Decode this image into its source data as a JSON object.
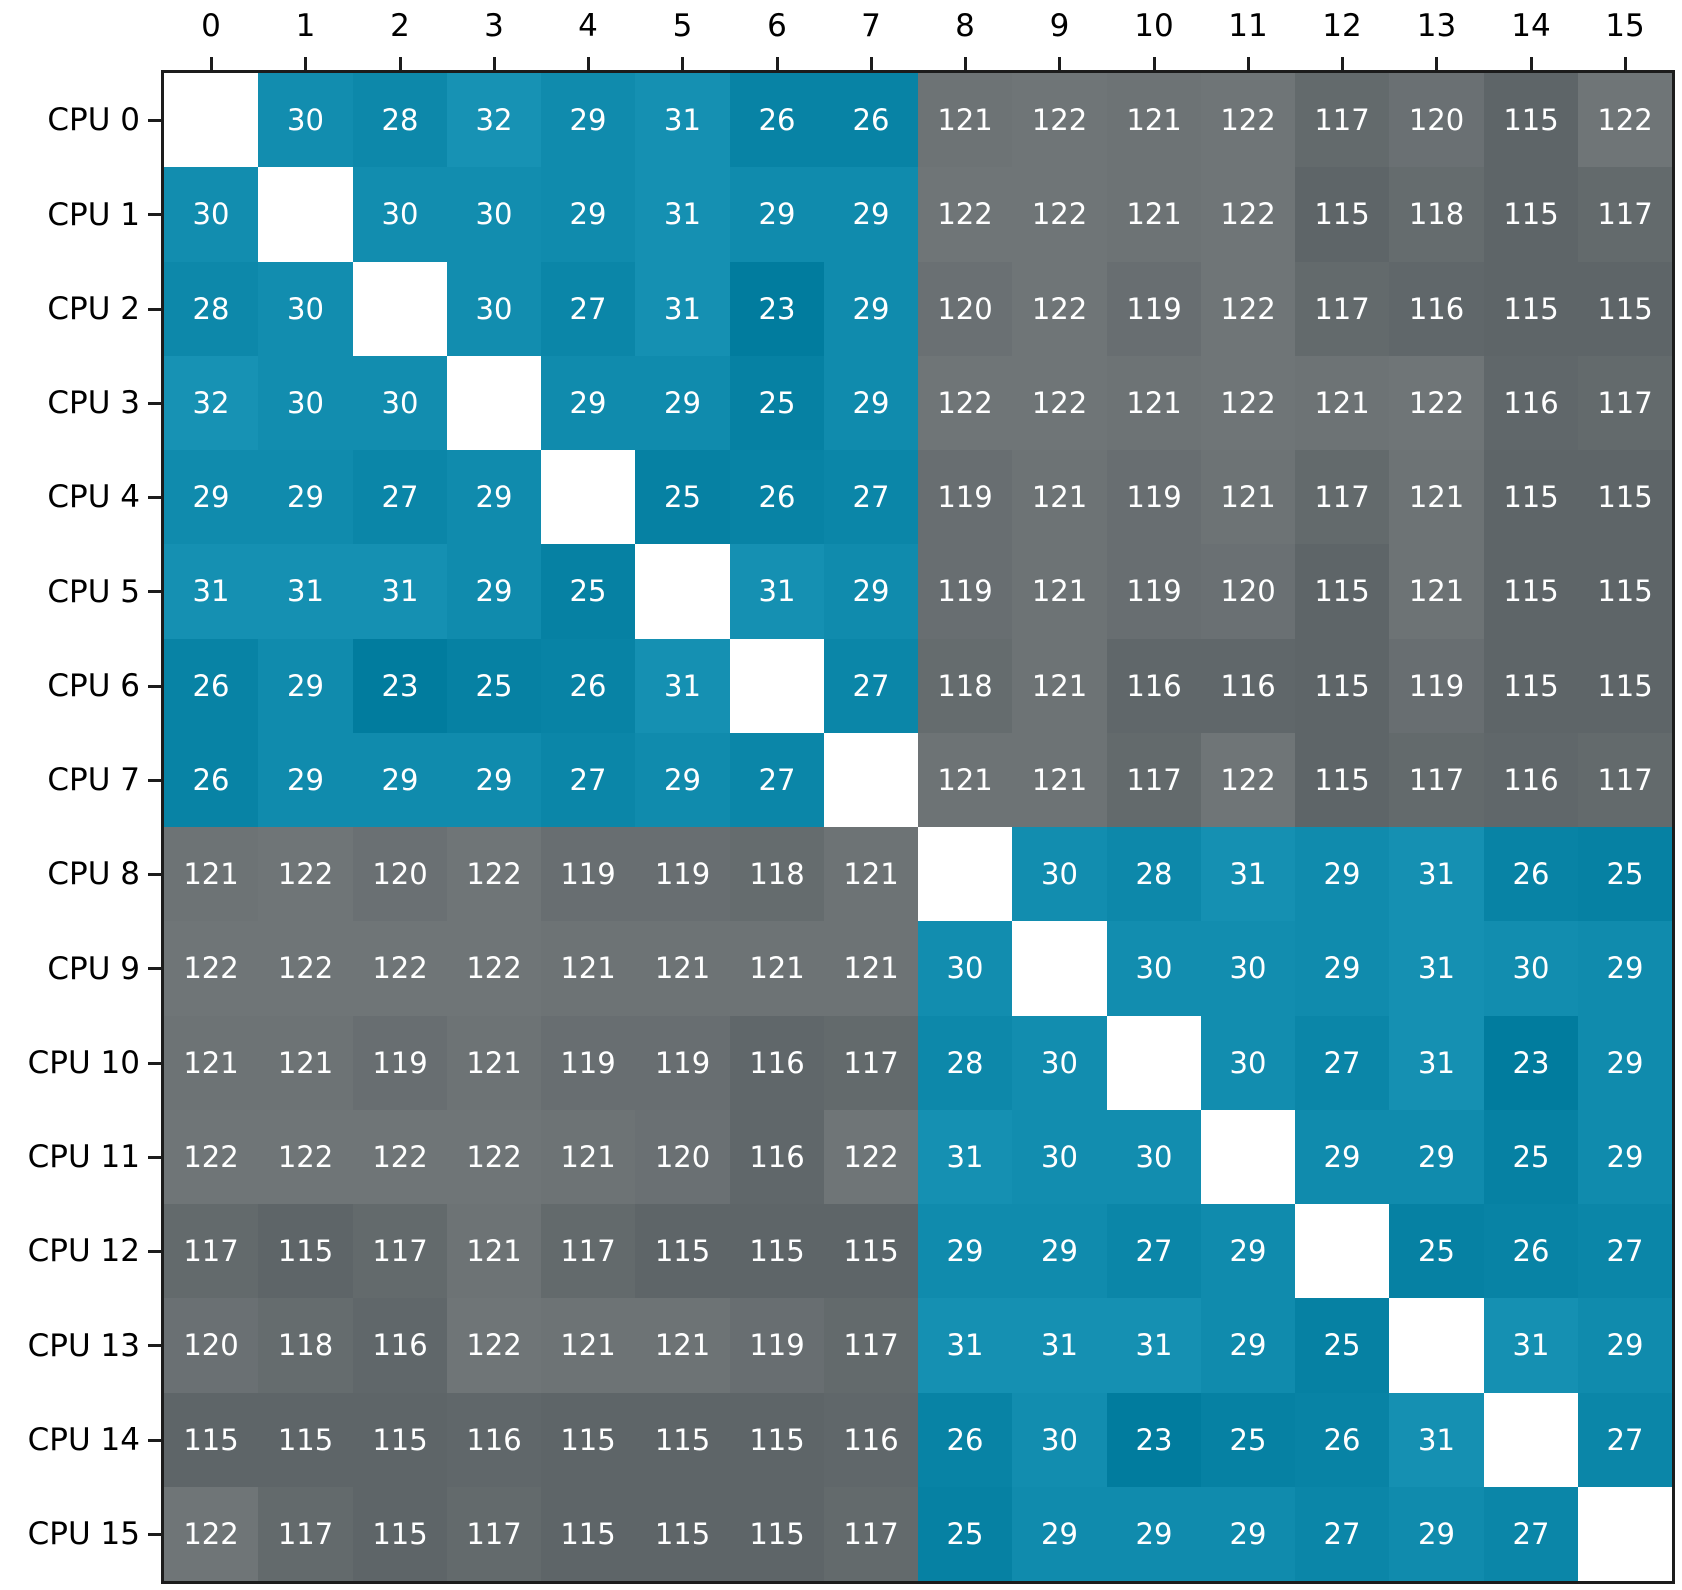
{
  "figure": {
    "background": "#ffffff"
  },
  "chart_data": {
    "type": "heatmap",
    "title": "",
    "xlabel": "",
    "ylabel": "",
    "grid": false,
    "legend": "none",
    "x_tick_labels": [
      "0",
      "1",
      "2",
      "3",
      "4",
      "5",
      "6",
      "7",
      "8",
      "9",
      "10",
      "11",
      "12",
      "13",
      "14",
      "15"
    ],
    "y_tick_labels": [
      "CPU 0",
      "CPU 1",
      "CPU 2",
      "CPU 3",
      "CPU 4",
      "CPU 5",
      "CPU 6",
      "CPU 7",
      "CPU 8",
      "CPU 9",
      "CPU 10",
      "CPU 11",
      "CPU 12",
      "CPU 13",
      "CPU 14",
      "CPU 15"
    ],
    "values": [
      [
        null,
        30,
        28,
        32,
        29,
        31,
        26,
        26,
        121,
        122,
        121,
        122,
        117,
        120,
        115,
        122
      ],
      [
        30,
        null,
        30,
        30,
        29,
        31,
        29,
        29,
        122,
        122,
        121,
        122,
        115,
        118,
        115,
        117
      ],
      [
        28,
        30,
        null,
        30,
        27,
        31,
        23,
        29,
        120,
        122,
        119,
        122,
        117,
        116,
        115,
        115
      ],
      [
        32,
        30,
        30,
        null,
        29,
        29,
        25,
        29,
        122,
        122,
        121,
        122,
        121,
        122,
        116,
        117
      ],
      [
        29,
        29,
        27,
        29,
        null,
        25,
        26,
        27,
        119,
        121,
        119,
        121,
        117,
        121,
        115,
        115
      ],
      [
        31,
        31,
        31,
        29,
        25,
        null,
        31,
        29,
        119,
        121,
        119,
        120,
        115,
        121,
        115,
        115
      ],
      [
        26,
        29,
        23,
        25,
        26,
        31,
        null,
        27,
        118,
        121,
        116,
        116,
        115,
        119,
        115,
        115
      ],
      [
        26,
        29,
        29,
        29,
        27,
        29,
        27,
        null,
        121,
        121,
        117,
        122,
        115,
        117,
        116,
        117
      ],
      [
        121,
        122,
        120,
        122,
        119,
        119,
        118,
        121,
        null,
        30,
        28,
        31,
        29,
        31,
        26,
        25
      ],
      [
        122,
        122,
        122,
        122,
        121,
        121,
        121,
        121,
        30,
        null,
        30,
        30,
        29,
        31,
        30,
        29
      ],
      [
        121,
        121,
        119,
        121,
        119,
        119,
        116,
        117,
        28,
        30,
        null,
        30,
        27,
        31,
        23,
        29
      ],
      [
        122,
        122,
        122,
        122,
        121,
        120,
        116,
        122,
        31,
        30,
        30,
        null,
        29,
        29,
        25,
        29
      ],
      [
        117,
        115,
        117,
        121,
        117,
        115,
        115,
        115,
        29,
        29,
        27,
        29,
        null,
        25,
        26,
        27
      ],
      [
        120,
        118,
        116,
        122,
        121,
        121,
        119,
        117,
        31,
        31,
        31,
        29,
        25,
        null,
        31,
        29
      ],
      [
        115,
        115,
        115,
        116,
        115,
        115,
        115,
        116,
        26,
        30,
        23,
        25,
        26,
        31,
        null,
        27
      ],
      [
        122,
        117,
        115,
        117,
        115,
        115,
        115,
        117,
        25,
        29,
        29,
        29,
        27,
        29,
        27,
        null
      ]
    ],
    "value_clusters": {
      "low_range": [
        23,
        32
      ],
      "high_range": [
        115,
        122
      ]
    },
    "colors": {
      "low_min": "#017C9E",
      "low_max": "#1792B4",
      "high_min": "#5E6568",
      "high_max": "#6F7577",
      "diagonal": "#FFFFFF",
      "cell_text": "#FFFFFF",
      "axis_text": "#000000",
      "border": "#1C1C1C"
    }
  }
}
